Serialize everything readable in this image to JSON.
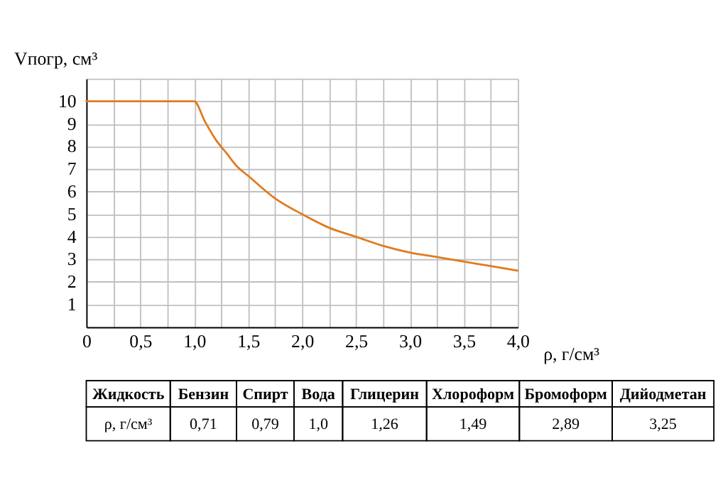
{
  "chart_data": {
    "type": "line",
    "xlabel": "ρ, г/см³",
    "ylabel": "Vпогр, см³",
    "x": [
      0,
      0.5,
      1.0,
      1.1,
      1.2,
      1.3,
      1.4,
      1.5,
      1.75,
      2.0,
      2.25,
      2.5,
      2.75,
      3.0,
      3.25,
      3.5,
      3.75,
      4.0
    ],
    "series": [
      {
        "color": "#e07b1f",
        "values": [
          10,
          10,
          10,
          9.1,
          8.3,
          7.7,
          7.1,
          6.7,
          5.7,
          5.0,
          4.4,
          4.0,
          3.6,
          3.3,
          3.1,
          2.9,
          2.7,
          2.5
        ]
      }
    ],
    "xlim": [
      0,
      4
    ],
    "ylim": [
      0,
      11
    ],
    "xticks": [
      0,
      {
        "value": 0.25,
        "label": null
      },
      {
        "value": 0.5,
        "label": "0,5"
      },
      {
        "value": 0.75,
        "label": null
      },
      {
        "value": 1.0,
        "label": "1,0"
      },
      {
        "value": 1.25,
        "label": null
      },
      {
        "value": 1.5,
        "label": "1,5"
      },
      {
        "value": 1.75,
        "label": null
      },
      {
        "value": 2.0,
        "label": "2,0"
      },
      {
        "value": 2.25,
        "label": null
      },
      {
        "value": 2.5,
        "label": "2,5"
      },
      {
        "value": 2.75,
        "label": null
      },
      {
        "value": 3.0,
        "label": "3,0"
      },
      {
        "value": 3.25,
        "label": null
      },
      {
        "value": 3.5,
        "label": "3,5"
      },
      {
        "value": 3.75,
        "label": null
      },
      {
        "value": 4.0,
        "label": "4,0"
      }
    ],
    "yticks": [
      1,
      2,
      3,
      4,
      5,
      6,
      7,
      8,
      9,
      10,
      {
        "value": 11,
        "label": null
      }
    ],
    "grid": true,
    "marker": "none",
    "line_style": "solid",
    "annotations": [
      "Жидкость",
      "Бензин",
      "Спирт",
      "Вода",
      "Глицерин",
      "Хлороформ",
      "Бромоформ",
      "Дийодметан",
      "ρ, г/см³",
      "0,71",
      "0,79",
      "1,0",
      "1,26",
      "1,49",
      "2,89",
      "3,25"
    ]
  }
}
